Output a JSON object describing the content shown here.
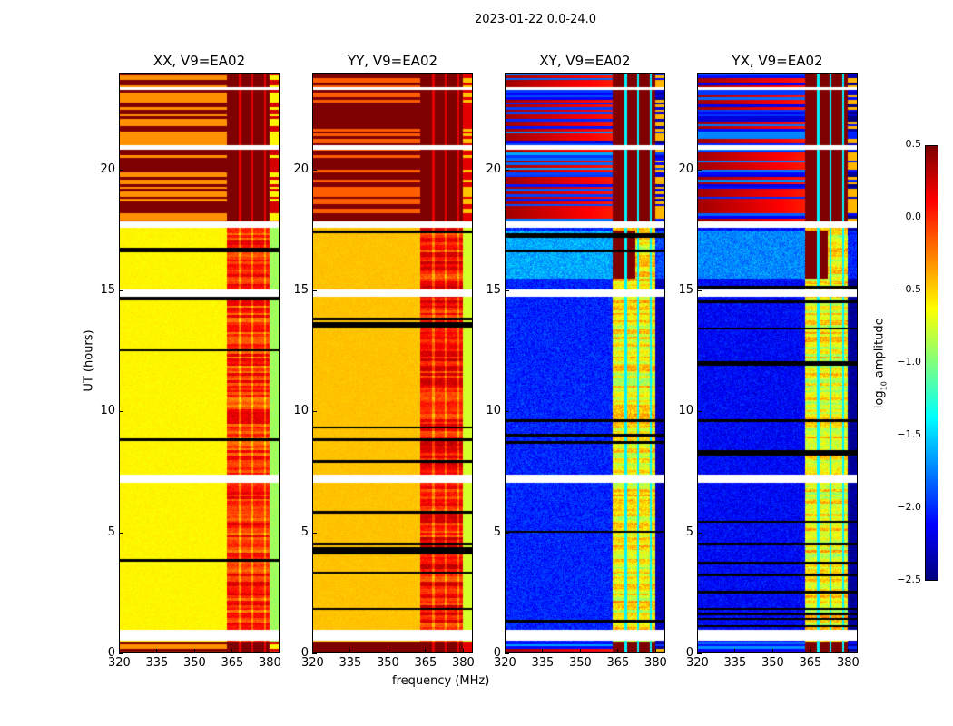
{
  "suptitle": "2023-01-22 0.0-24.0",
  "chart_data": {
    "type": "heatmap",
    "title": "2023-01-22 0.0-24.0",
    "xlabel": "frequency (MHz)",
    "ylabel": "UT (hours)",
    "xlim": [
      320,
      384
    ],
    "ylim": [
      0,
      24
    ],
    "xticks": [
      "320",
      "335",
      "350",
      "365",
      "380"
    ],
    "xtick_values": [
      320,
      335,
      350,
      365,
      380
    ],
    "yticks": [
      "0",
      "5",
      "10",
      "15",
      "20"
    ],
    "ytick_values": [
      0,
      5,
      10,
      15,
      20
    ],
    "colormap": "jet",
    "clim": [
      -2.5,
      0.5
    ],
    "colorbar": {
      "label_main": "log",
      "label_sub": "10",
      "label_tail": " amplitude",
      "ticks": [
        "0.5",
        "0.0",
        "−0.5",
        "−1.0",
        "−1.5",
        "−2.0",
        "−2.5"
      ],
      "tick_values": [
        0.5,
        0.0,
        -0.5,
        -1.0,
        -1.5,
        -2.0,
        -2.5
      ]
    },
    "flagged_hours": [
      [
        0.55,
        1.0
      ],
      [
        7.05,
        7.4
      ],
      [
        14.75,
        15.05
      ],
      [
        17.6,
        17.85
      ],
      [
        20.85,
        21.0
      ],
      [
        23.3,
        23.4
      ]
    ],
    "rfi_band_mhz": [
      363,
      380
    ],
    "panels": [
      {
        "title": "XX, V9=EA02",
        "pol": "parallel",
        "base": -0.6,
        "rfi": 0.0,
        "upper": 0.35
      },
      {
        "title": "YY, V9=EA02",
        "pol": "parallel",
        "base": -0.45,
        "rfi": 0.1,
        "upper": 0.3
      },
      {
        "title": "XY, V9=EA02",
        "pol": "cross",
        "base": -2.2,
        "rfi": -0.6,
        "upper": 0.4
      },
      {
        "title": "YX, V9=EA02",
        "pol": "cross",
        "base": -2.3,
        "rfi": -0.6,
        "upper": 0.4
      }
    ]
  }
}
